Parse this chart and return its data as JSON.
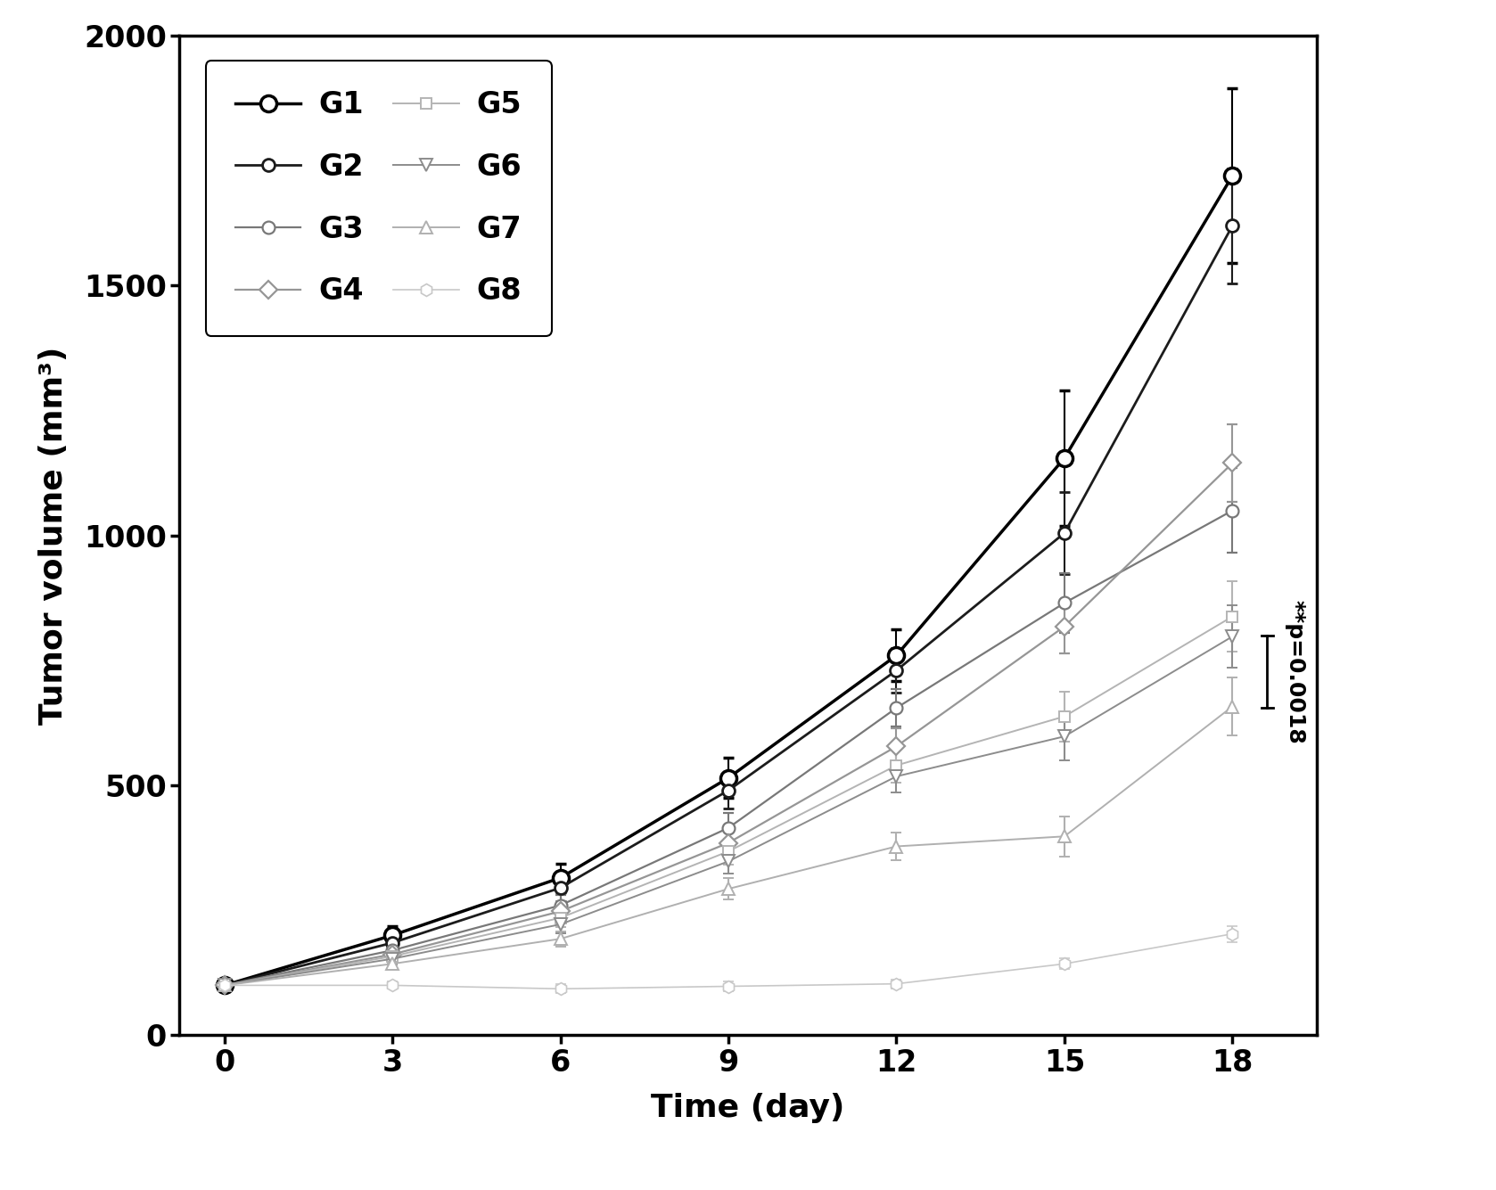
{
  "x": [
    0,
    3,
    6,
    9,
    12,
    15,
    18
  ],
  "groups_order": [
    "G1",
    "G2",
    "G3",
    "G4",
    "G5",
    "G6",
    "G7",
    "G8"
  ],
  "G1": {
    "y": [
      100,
      200,
      315,
      515,
      760,
      1155,
      1720
    ],
    "yerr": [
      8,
      18,
      28,
      40,
      52,
      135,
      175
    ]
  },
  "G2": {
    "y": [
      100,
      185,
      295,
      490,
      730,
      1005,
      1620
    ],
    "yerr": [
      8,
      16,
      26,
      36,
      44,
      82,
      115
    ]
  },
  "G3": {
    "y": [
      100,
      170,
      260,
      415,
      655,
      865,
      1050
    ],
    "yerr": [
      7,
      14,
      21,
      30,
      38,
      60,
      85
    ]
  },
  "G4": {
    "y": [
      100,
      162,
      248,
      385,
      578,
      818,
      1145
    ],
    "yerr": [
      7,
      13,
      20,
      28,
      37,
      54,
      78
    ]
  },
  "G5": {
    "y": [
      100,
      158,
      235,
      368,
      540,
      638,
      838
    ],
    "yerr": [
      7,
      12,
      18,
      26,
      34,
      50,
      70
    ]
  },
  "G6": {
    "y": [
      100,
      153,
      222,
      348,
      518,
      598,
      798
    ],
    "yerr": [
      7,
      11,
      17,
      24,
      32,
      47,
      63
    ]
  },
  "G7": {
    "y": [
      100,
      143,
      193,
      293,
      378,
      398,
      658
    ],
    "yerr": [
      6,
      10,
      15,
      21,
      27,
      40,
      58
    ]
  },
  "G8": {
    "y": [
      100,
      100,
      93,
      98,
      103,
      143,
      203
    ],
    "yerr": [
      5,
      7,
      9,
      9,
      9,
      11,
      16
    ]
  },
  "colors": {
    "G1": "#000000",
    "G2": "#1c1c1c",
    "G3": "#787878",
    "G4": "#969696",
    "G5": "#b4b4b4",
    "G6": "#8c8c8c",
    "G7": "#b0b0b0",
    "G8": "#c8c8c8"
  },
  "markers": {
    "G1": "o",
    "G2": "o",
    "G3": "o",
    "G4": "D",
    "G5": "s",
    "G6": "v",
    "G7": "^",
    "G8": "h"
  },
  "markersizes": {
    "G1": 13,
    "G2": 10,
    "G3": 10,
    "G4": 10,
    "G5": 9,
    "G6": 10,
    "G7": 10,
    "G8": 10
  },
  "linewidths": {
    "G1": 2.5,
    "G2": 2.0,
    "G3": 1.6,
    "G4": 1.6,
    "G5": 1.4,
    "G6": 1.4,
    "G7": 1.4,
    "G8": 1.2
  },
  "markeredgewidths": {
    "G1": 2.5,
    "G2": 2.0,
    "G3": 1.6,
    "G4": 1.6,
    "G5": 1.4,
    "G6": 1.4,
    "G7": 1.4,
    "G8": 1.2
  },
  "xlabel": "Time (day)",
  "ylabel": "Tumor volume (mm³)",
  "xlim": [
    -0.8,
    19.5
  ],
  "ylim": [
    0,
    2000
  ],
  "xticks": [
    0,
    3,
    6,
    9,
    12,
    15,
    18
  ],
  "yticks": [
    0,
    500,
    1000,
    1500,
    2000
  ],
  "annotation": "**p=0.0018",
  "ann_line_x": 18.62,
  "ann_y_low": 655,
  "ann_y_high": 800,
  "bg_color": "#ffffff"
}
